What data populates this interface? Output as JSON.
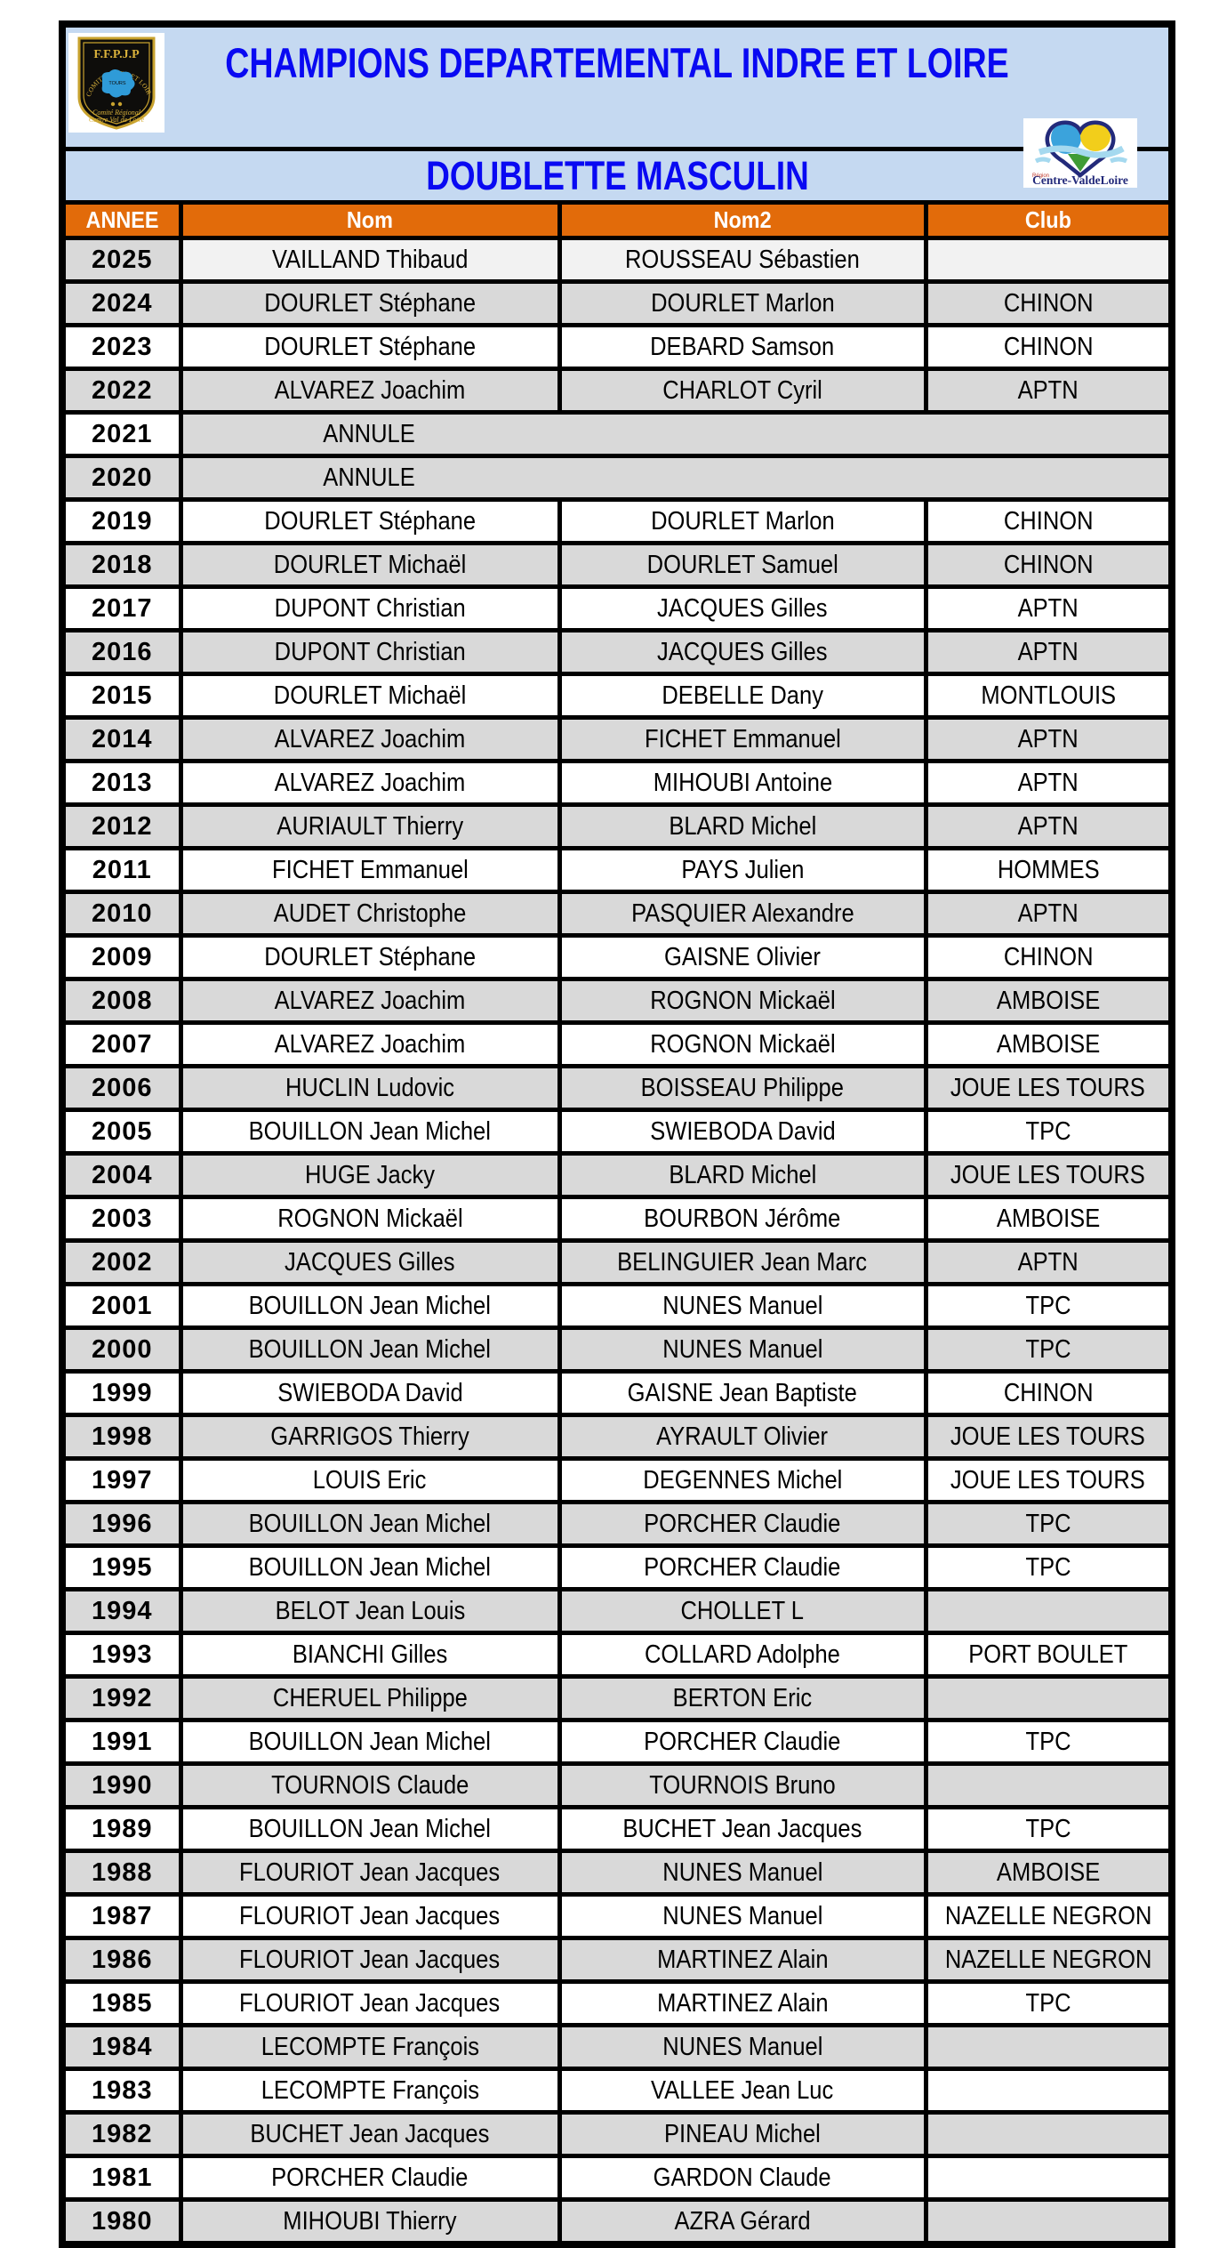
{
  "header": {
    "title": "CHAMPIONS DEPARTEMENTAL INDRE ET LOIRE",
    "subtitle": "DOUBLETTE MASCULIN",
    "title_color": "#0909F2",
    "band_bg": "#C5D9F1",
    "ffpjp_logo": {
      "label": "F.F.P.J.P",
      "arc_text": "COMITE INDRE ET LOIRE",
      "center_text": "TOURS",
      "footer_line1": "Comité Régional",
      "footer_line2": "Centre Val de Loire"
    },
    "region_logo": {
      "region_word": "Région",
      "name": "Centre-ValdeLoire"
    }
  },
  "table": {
    "columns": [
      "ANNEE",
      "Nom",
      "Nom2",
      "Club"
    ],
    "header_bg": "#E26B0A",
    "header_text_color": "#FFFFFF",
    "row_colors": {
      "gray": "#D9D9D9",
      "white": "#FFFFFF",
      "light": "#F2F2F2"
    },
    "rows": [
      {
        "annee": "2025",
        "nom": "VAILLAND Thibaud",
        "nom2": "ROUSSEAU Sébastien",
        "club": ""
      },
      {
        "annee": "2024",
        "nom": "DOURLET Stéphane",
        "nom2": "DOURLET Marlon",
        "club": "CHINON"
      },
      {
        "annee": "2023",
        "nom": "DOURLET Stéphane",
        "nom2": "DEBARD Samson",
        "club": "CHINON"
      },
      {
        "annee": "2022",
        "nom": "ALVAREZ Joachim",
        "nom2": "CHARLOT Cyril",
        "club": "APTN"
      },
      {
        "annee": "2021",
        "annule": "ANNULE"
      },
      {
        "annee": "2020",
        "annule": "ANNULE"
      },
      {
        "annee": "2019",
        "nom": "DOURLET Stéphane",
        "nom2": "DOURLET Marlon",
        "club": "CHINON"
      },
      {
        "annee": "2018",
        "nom": "DOURLET Michaël",
        "nom2": "DOURLET Samuel",
        "club": "CHINON"
      },
      {
        "annee": "2017",
        "nom": "DUPONT Christian",
        "nom2": "JACQUES Gilles",
        "club": "APTN"
      },
      {
        "annee": "2016",
        "nom": "DUPONT Christian",
        "nom2": "JACQUES Gilles",
        "club": "APTN"
      },
      {
        "annee": "2015",
        "nom": "DOURLET Michaël",
        "nom2": "DEBELLE Dany",
        "club": "MONTLOUIS"
      },
      {
        "annee": "2014",
        "nom": "ALVAREZ Joachim",
        "nom2": "FICHET Emmanuel",
        "club": "APTN"
      },
      {
        "annee": "2013",
        "nom": "ALVAREZ Joachim",
        "nom2": "MIHOUBI Antoine",
        "club": "APTN"
      },
      {
        "annee": "2012",
        "nom": "AURIAULT Thierry",
        "nom2": "BLARD Michel",
        "club": "APTN"
      },
      {
        "annee": "2011",
        "nom": "FICHET Emmanuel",
        "nom2": "PAYS Julien",
        "club": "HOMMES"
      },
      {
        "annee": "2010",
        "nom": "AUDET Christophe",
        "nom2": "PASQUIER Alexandre",
        "club": "APTN"
      },
      {
        "annee": "2009",
        "nom": "DOURLET Stéphane",
        "nom2": "GAISNE Olivier",
        "club": "CHINON"
      },
      {
        "annee": "2008",
        "nom": "ALVAREZ Joachim",
        "nom2": "ROGNON Mickaël",
        "club": "AMBOISE"
      },
      {
        "annee": "2007",
        "nom": "ALVAREZ Joachim",
        "nom2": "ROGNON Mickaël",
        "club": "AMBOISE"
      },
      {
        "annee": "2006",
        "nom": "HUCLIN Ludovic",
        "nom2": "BOISSEAU Philippe",
        "club": "JOUE LES TOURS"
      },
      {
        "annee": "2005",
        "nom": "BOUILLON Jean Michel",
        "nom2": "SWIEBODA David",
        "club": "TPC"
      },
      {
        "annee": "2004",
        "nom": "HUGE Jacky",
        "nom2": "BLARD Michel",
        "club": "JOUE LES TOURS"
      },
      {
        "annee": "2003",
        "nom": "ROGNON Mickaël",
        "nom2": "BOURBON Jérôme",
        "club": "AMBOISE"
      },
      {
        "annee": "2002",
        "nom": "JACQUES Gilles",
        "nom2": "BELINGUIER Jean Marc",
        "club": "APTN"
      },
      {
        "annee": "2001",
        "nom": "BOUILLON Jean Michel",
        "nom2": "NUNES Manuel",
        "club": "TPC"
      },
      {
        "annee": "2000",
        "nom": "BOUILLON Jean Michel",
        "nom2": "NUNES Manuel",
        "club": "TPC"
      },
      {
        "annee": "1999",
        "nom": "SWIEBODA David",
        "nom2": "GAISNE Jean Baptiste",
        "club": "CHINON"
      },
      {
        "annee": "1998",
        "nom": "GARRIGOS Thierry",
        "nom2": "AYRAULT Olivier",
        "club": "JOUE LES TOURS"
      },
      {
        "annee": "1997",
        "nom": "LOUIS Eric",
        "nom2": "DEGENNES Michel",
        "club": "JOUE LES TOURS"
      },
      {
        "annee": "1996",
        "nom": "BOUILLON Jean Michel",
        "nom2": "PORCHER Claudie",
        "club": "TPC"
      },
      {
        "annee": "1995",
        "nom": "BOUILLON Jean Michel",
        "nom2": "PORCHER Claudie",
        "club": "TPC"
      },
      {
        "annee": "1994",
        "nom": "BELOT Jean Louis",
        "nom2": "CHOLLET L",
        "club": ""
      },
      {
        "annee": "1993",
        "nom": "BIANCHI Gilles",
        "nom2": "COLLARD Adolphe",
        "club": "PORT BOULET"
      },
      {
        "annee": "1992",
        "nom": "CHERUEL Philippe",
        "nom2": "BERTON Eric",
        "club": ""
      },
      {
        "annee": "1991",
        "nom": "BOUILLON Jean Michel",
        "nom2": "PORCHER Claudie",
        "club": "TPC"
      },
      {
        "annee": "1990",
        "nom": "TOURNOIS Claude",
        "nom2": "TOURNOIS Bruno",
        "club": ""
      },
      {
        "annee": "1989",
        "nom": "BOUILLON Jean Michel",
        "nom2": "BUCHET Jean Jacques",
        "club": "TPC"
      },
      {
        "annee": "1988",
        "nom": "FLOURIOT Jean Jacques",
        "nom2": "NUNES Manuel",
        "club": "AMBOISE"
      },
      {
        "annee": "1987",
        "nom": "FLOURIOT Jean Jacques",
        "nom2": "NUNES Manuel",
        "club": "NAZELLE NEGRON"
      },
      {
        "annee": "1986",
        "nom": "FLOURIOT Jean Jacques",
        "nom2": "MARTINEZ Alain",
        "club": "NAZELLE NEGRON"
      },
      {
        "annee": "1985",
        "nom": "FLOURIOT Jean Jacques",
        "nom2": "MARTINEZ Alain",
        "club": "TPC"
      },
      {
        "annee": "1984",
        "nom": "LECOMPTE François",
        "nom2": "NUNES Manuel",
        "club": ""
      },
      {
        "annee": "1983",
        "nom": "LECOMPTE François",
        "nom2": "VALLEE Jean Luc",
        "club": ""
      },
      {
        "annee": "1982",
        "nom": "BUCHET Jean Jacques",
        "nom2": "PINEAU Michel",
        "club": ""
      },
      {
        "annee": "1981",
        "nom": "PORCHER Claudie",
        "nom2": "GARDON Claude",
        "club": ""
      },
      {
        "annee": "1980",
        "nom": "MIHOUBI Thierry",
        "nom2": "AZRA Gérard",
        "club": ""
      }
    ]
  }
}
